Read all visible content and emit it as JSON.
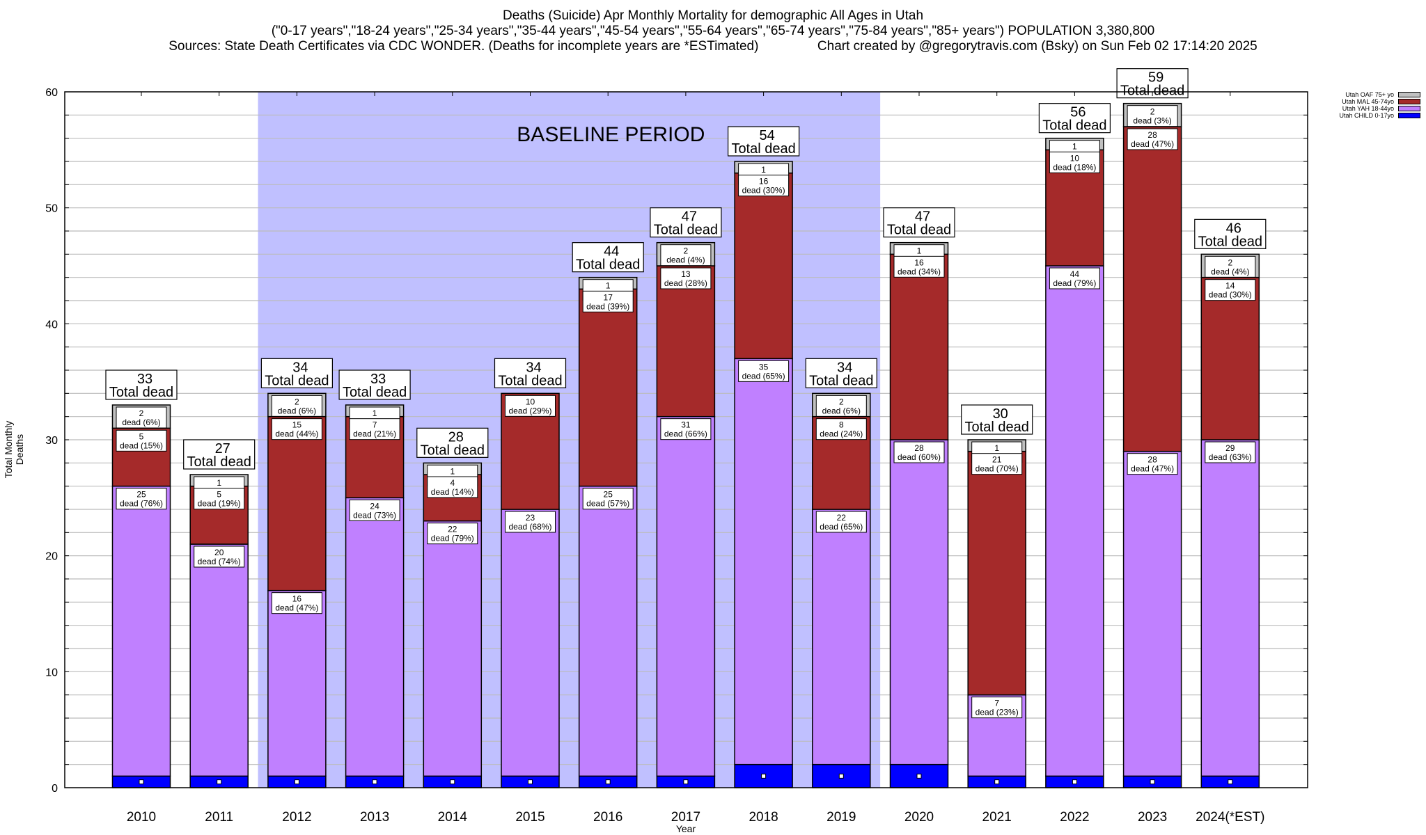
{
  "titles": {
    "line1": "Deaths (Suicide) Apr Monthly Mortality for demographic All Ages in Utah",
    "line2": "(\"0-17 years\",\"18-24 years\",\"25-34 years\",\"35-44 years\",\"45-54 years\",\"55-64 years\",\"65-74 years\",\"75-84 years\",\"85+ years\") POPULATION 3,380,800",
    "line3": "Sources: State Death Certificates via CDC WONDER. (Deaths for incomplete years are *ESTimated)                Chart created by @gregorytravis.com (Bsky) on Sun Feb 02 17:14:20 2025"
  },
  "chart_data": {
    "type": "bar",
    "stacked": true,
    "title": "Deaths (Suicide) Apr Monthly Mortality for demographic All Ages in Utah",
    "xlabel": "Year",
    "ylabel": "Total Monthly Deaths",
    "ylim": [
      0,
      60
    ],
    "yticks": [
      0,
      10,
      20,
      30,
      40,
      50,
      60
    ],
    "grid": true,
    "legend_position": "top-right",
    "categories": [
      "2010",
      "2011",
      "2012",
      "2013",
      "2014",
      "2015",
      "2016",
      "2017",
      "2018",
      "2019",
      "2020",
      "2021",
      "2022",
      "2023",
      "2024(*EST)"
    ],
    "series": [
      {
        "name": "Utah CHILD 0-17yo",
        "color": "#0000ff",
        "values": [
          1,
          1,
          1,
          1,
          1,
          1,
          1,
          1,
          2,
          2,
          2,
          1,
          1,
          1,
          1
        ]
      },
      {
        "name": "Utah YAH 18-44yo",
        "color": "#c080ff",
        "values": [
          25,
          20,
          16,
          24,
          22,
          23,
          25,
          31,
          35,
          22,
          28,
          7,
          44,
          28,
          29
        ],
        "percents": [
          "76%",
          "74%",
          "47%",
          "73%",
          "79%",
          "68%",
          "57%",
          "66%",
          "65%",
          "65%",
          "60%",
          "23%",
          "79%",
          "47%",
          "63%"
        ]
      },
      {
        "name": "Utah MAL 45-74yo",
        "color": "#a52a2a",
        "values": [
          5,
          5,
          15,
          7,
          4,
          10,
          17,
          13,
          16,
          8,
          16,
          21,
          10,
          28,
          14
        ],
        "percents": [
          "15%",
          "19%",
          "44%",
          "21%",
          "14%",
          "29%",
          "39%",
          "28%",
          "30%",
          "24%",
          "34%",
          "70%",
          "18%",
          "47%",
          "30%"
        ]
      },
      {
        "name": "Utah OAF 75+ yo",
        "color": "#c0c0c0",
        "values": [
          2,
          1,
          2,
          1,
          1,
          0,
          1,
          2,
          1,
          2,
          1,
          1,
          1,
          2,
          2
        ],
        "percents": [
          "6%",
          "",
          "6%",
          "",
          "",
          "",
          "",
          "4%",
          "",
          "6%",
          "",
          "",
          "",
          "3%",
          "4%"
        ]
      }
    ],
    "totals": [
      33,
      27,
      34,
      33,
      28,
      34,
      44,
      47,
      54,
      34,
      47,
      30,
      56,
      59,
      46
    ],
    "total_label_suffix": "Total dead",
    "segment_label_word": "dead",
    "annotation": {
      "text": "BASELINE PERIOD",
      "from": "2012",
      "to": "2019",
      "color": "#c0c0ff"
    }
  }
}
